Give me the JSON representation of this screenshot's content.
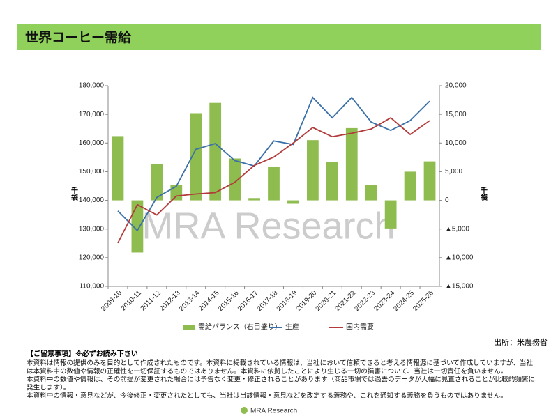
{
  "header": {
    "title": "世界コーヒー需給"
  },
  "chart_data": {
    "type": "combo",
    "categories": [
      "2009-10",
      "2010-11",
      "2011-12",
      "2012-13",
      "2013-14",
      "2014-15",
      "2015-16",
      "2016-17",
      "2017-18",
      "2018-19",
      "2019-20",
      "2020-21",
      "2021-22",
      "2022-23",
      "2023-24",
      "2024-25",
      "2025-26"
    ],
    "series": [
      {
        "name": "需給バランス（右目盛り）",
        "type": "bar",
        "axis": "y2",
        "color": "#8fbc4f",
        "values": [
          11200,
          -9100,
          6300,
          2700,
          15200,
          17000,
          7300,
          400,
          5800,
          -600,
          10500,
          6700,
          12600,
          2700,
          -4900,
          5000,
          6800
        ]
      },
      {
        "name": "生産",
        "type": "line",
        "color": "#3a6fa8",
        "values": [
          136300,
          129500,
          141000,
          144900,
          157800,
          159800,
          153900,
          152000,
          160700,
          159500,
          175900,
          168800,
          175900,
          167300,
          164400,
          167800,
          174600
        ]
      },
      {
        "name": "国内需要",
        "type": "line",
        "color": "#b23a3a",
        "values": [
          125100,
          138500,
          134900,
          141500,
          142200,
          142700,
          146300,
          152200,
          155100,
          160000,
          165400,
          162200,
          163400,
          164900,
          168800,
          163000,
          167800
        ]
      }
    ],
    "y_label": "千袋",
    "y2_label": "千袋",
    "ylim": [
      110000,
      180000
    ],
    "yticks": [
      {
        "value": 110000,
        "label": "110,000"
      },
      {
        "value": 120000,
        "label": "120,000"
      },
      {
        "value": 130000,
        "label": "130,000"
      },
      {
        "value": 140000,
        "label": "140,000"
      },
      {
        "value": 150000,
        "label": "150,000"
      },
      {
        "value": 160000,
        "label": "160,000"
      },
      {
        "value": 170000,
        "label": "170,000"
      },
      {
        "value": 180000,
        "label": "180,000"
      }
    ],
    "y2lim": [
      -15000,
      20000
    ],
    "y2ticks": [
      {
        "value": -15000,
        "label": "▲15,000"
      },
      {
        "value": -10000,
        "label": "▲10,000"
      },
      {
        "value": -5000,
        "label": "▲5,000"
      },
      0,
      {
        "value": 5000,
        "label": "5,000"
      },
      {
        "value": 10000,
        "label": "10,000"
      },
      {
        "value": 15000,
        "label": "15,000"
      },
      {
        "value": 20000,
        "label": "20,000"
      }
    ],
    "negative_tick_color": "#d00000",
    "legend": "bottom",
    "source": "出所：米農務省"
  },
  "watermark": "MRA Research",
  "notes": {
    "heading": "【ご留意事項】※必ずお読み下さい",
    "lines": [
      "本資料は情報の提供のみを目的として作成されたものです。本資料に掲載されている情報は、当社において信頼できると考える情報源に基づいて作成していますが、当社",
      "は本資料中の数値や情報の正確性を一切保証するものではありません。本資料に依拠したことにより生じる一切の損害について、当社は一切責任を負いません。",
      "本資料中の数値や情報は、その前提が変更された場合には予告なく変更・修正されることがあります（商品市場では過去のデータが大幅に見直されることが比較的頻繁に",
      "発生します）。",
      "本資料中の情報・意見などが、今後修正・変更されたとしても、当社は当該情報・意見などを改定する義務や、これを通知する義務を負うものではありません。"
    ]
  },
  "footer": {
    "logo": "MRA Research"
  }
}
